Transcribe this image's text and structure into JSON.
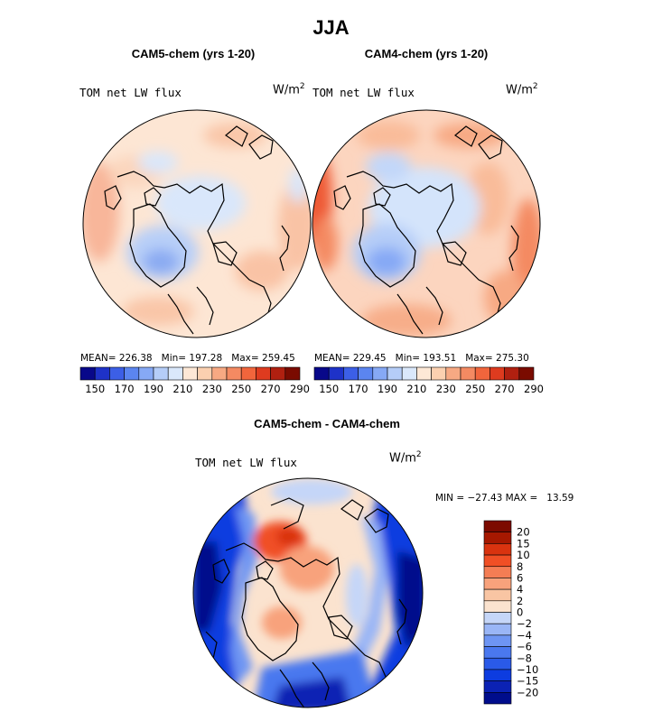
{
  "title": "JJA",
  "panels": [
    {
      "title": "CAM5-chem (yrs 1-20)",
      "variable": "TOM net LW flux",
      "units": "W/m",
      "units_exp": "2",
      "stats": {
        "mean_label": "MEAN=",
        "mean": "226.38",
        "min_label": "Min=",
        "min": "197.28",
        "max_label": "Max=",
        "max": "259.45"
      }
    },
    {
      "title": "CAM4-chem (yrs 1-20)",
      "variable": "TOM net LW flux",
      "units": "W/m",
      "units_exp": "2",
      "stats": {
        "mean_label": "MEAN=",
        "mean": "229.45",
        "min_label": "Min=",
        "min": "193.51",
        "max_label": "Max=",
        "max": "275.30"
      }
    },
    {
      "title": "CAM5-chem - CAM4-chem",
      "variable": "TOM net LW flux",
      "units": "W/m",
      "units_exp": "2",
      "minmax": "MIN = −27.43 MAX =   13.59"
    }
  ],
  "colors": {
    "abs_scale": [
      "#08088a",
      "#1e32c8",
      "#3c5fe6",
      "#5b85f0",
      "#86a9f5",
      "#b5cdf8",
      "#dae8fb",
      "#fde8d6",
      "#fbd0b0",
      "#f7a983",
      "#f48a62",
      "#f1653c",
      "#de3b1f",
      "#b02010",
      "#7a0b00"
    ],
    "diff_scale": [
      "#000d8c",
      "#0b22b4",
      "#0d3ce0",
      "#2a5ae8",
      "#4a78ef",
      "#6e95f3",
      "#9ab6f6",
      "#c5d6f8",
      "#fbe3cf",
      "#f9c5a3",
      "#f8a27c",
      "#f47d54",
      "#f04f25",
      "#d9330f",
      "#a61800",
      "#7c0a00"
    ],
    "land_line": "#000000"
  },
  "chart_data": [
    {
      "type": "heatmap",
      "projection": "north-polar-stereographic",
      "title": "CAM5-chem (yrs 1-20)",
      "variable": "TOM net LW flux",
      "units": "W/m^2",
      "mean": 226.38,
      "min": 197.28,
      "max": 259.45,
      "colorbar": {
        "orientation": "horizontal",
        "levels": [
          140,
          150,
          160,
          170,
          180,
          190,
          200,
          210,
          220,
          230,
          240,
          250,
          260,
          270,
          280,
          290
        ],
        "tick_labels": [
          "150",
          "170",
          "190",
          "210",
          "230",
          "250",
          "270",
          "290"
        ]
      }
    },
    {
      "type": "heatmap",
      "projection": "north-polar-stereographic",
      "title": "CAM4-chem (yrs 1-20)",
      "variable": "TOM net LW flux",
      "units": "W/m^2",
      "mean": 229.45,
      "min": 193.51,
      "max": 275.3,
      "colorbar": {
        "orientation": "horizontal",
        "levels": [
          140,
          150,
          160,
          170,
          180,
          190,
          200,
          210,
          220,
          230,
          240,
          250,
          260,
          270,
          280,
          290
        ],
        "tick_labels": [
          "150",
          "170",
          "190",
          "210",
          "230",
          "250",
          "270",
          "290"
        ]
      }
    },
    {
      "type": "heatmap",
      "projection": "north-polar-stereographic",
      "title": "CAM5-chem - CAM4-chem",
      "variable": "TOM net LW flux",
      "units": "W/m^2",
      "min": -27.43,
      "max": 13.59,
      "colorbar": {
        "orientation": "vertical",
        "tick_labels": [
          "20",
          "15",
          "10",
          "8",
          "6",
          "4",
          "2",
          "0",
          "−2",
          "−4",
          "−6",
          "−8",
          "−10",
          "−15",
          "−20"
        ]
      }
    }
  ]
}
